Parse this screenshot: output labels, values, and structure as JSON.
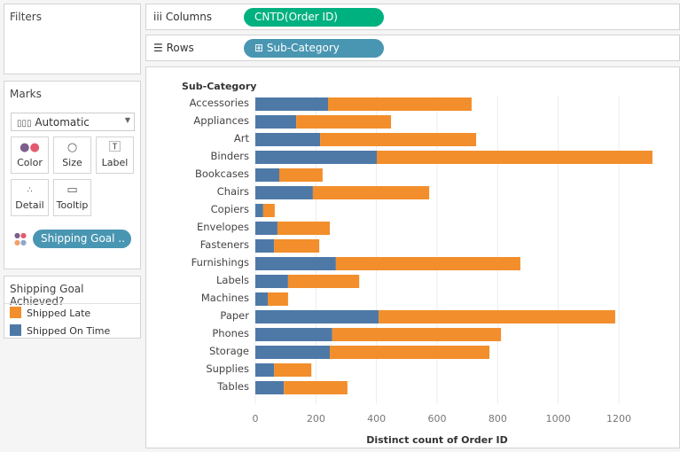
{
  "filters": {
    "title": "Filters"
  },
  "marks": {
    "title": "Marks",
    "mark_type": "Automatic",
    "cards": [
      "Color",
      "Size",
      "Label",
      "Detail",
      "Tooltip"
    ],
    "color_pill": "Shipping Goal .."
  },
  "legend": {
    "title": "Shipping Goal Achieved?",
    "items": [
      {
        "label": "Shipped Late",
        "color": "#f28e2b"
      },
      {
        "label": "Shipped On Time",
        "color": "#4e79a7"
      }
    ]
  },
  "shelves": {
    "columns_label": "Columns",
    "columns_pill": "CNTD(Order ID)",
    "rows_label": "Rows",
    "rows_pill": "Sub-Category",
    "columns_color": "#00b180",
    "rows_color": "#4996b2"
  },
  "chart_data": {
    "type": "bar",
    "orientation": "horizontal",
    "stacked": true,
    "row_header": "Sub-Category",
    "xlabel": "Distinct count of Order ID",
    "xlim": [
      0,
      1320
    ],
    "xticks": [
      0,
      200,
      400,
      600,
      800,
      1000,
      1200
    ],
    "grid": true,
    "categories": [
      "Accessories",
      "Appliances",
      "Art",
      "Binders",
      "Bookcases",
      "Chairs",
      "Copiers",
      "Envelopes",
      "Fasteners",
      "Furnishings",
      "Labels",
      "Machines",
      "Paper",
      "Phones",
      "Storage",
      "Supplies",
      "Tables"
    ],
    "series": [
      {
        "name": "Shipped On Time",
        "color": "#4e79a7",
        "values": [
          240,
          135,
          214,
          401,
          79,
          190,
          26,
          73,
          62,
          266,
          108,
          41,
          407,
          254,
          246,
          62,
          94
        ]
      },
      {
        "name": "Shipped Late",
        "color": "#f28e2b",
        "values": [
          474,
          313,
          515,
          910,
          143,
          384,
          38,
          173,
          149,
          609,
          235,
          67,
          781,
          557,
          527,
          123,
          210
        ]
      }
    ]
  }
}
